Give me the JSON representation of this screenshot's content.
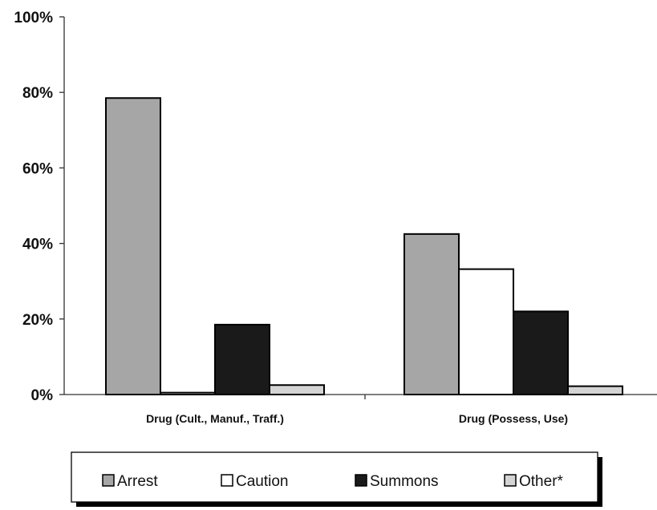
{
  "chart_data": {
    "type": "bar",
    "title": "",
    "xlabel": "",
    "ylabel": "",
    "categories": [
      "Drug (Cult., Manuf., Traff.)",
      "Drug (Possess, Use)"
    ],
    "series": [
      {
        "name": "Arrest",
        "values": [
          78.5,
          42.5
        ],
        "color": "#a6a6a6"
      },
      {
        "name": "Caution",
        "values": [
          0.5,
          33.2
        ],
        "color": "#ffffff"
      },
      {
        "name": "Summons",
        "values": [
          18.5,
          22.0
        ],
        "color": "#1a1a1a"
      },
      {
        "name": "Other*",
        "values": [
          2.5,
          2.2
        ],
        "color": "#d4d4d4"
      }
    ],
    "ylim": [
      0,
      100
    ],
    "yticks": [
      0,
      20,
      40,
      60,
      80,
      100
    ],
    "ytick_labels": [
      "0%",
      "20%",
      "40%",
      "60%",
      "80%",
      "100%"
    ],
    "grid": false,
    "legend": "bottom"
  }
}
